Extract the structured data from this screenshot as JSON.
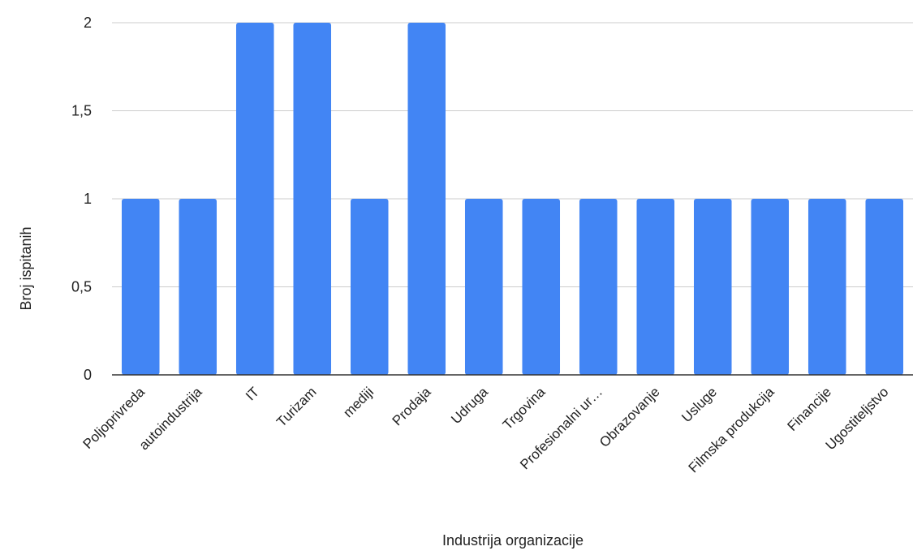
{
  "chart_data": {
    "type": "bar",
    "categories": [
      "Poljoprivreda",
      "autoindustrija",
      "IT",
      "Turizam",
      "mediji",
      "Prodaja",
      "Udruga",
      "Trgovina",
      "Profesionalni ur…",
      "Obrazovanje",
      "Usluge",
      "Filmska produkcija",
      "Financije",
      "Ugostiteljstvo"
    ],
    "values": [
      1,
      1,
      2,
      2,
      1,
      2,
      1,
      1,
      1,
      1,
      1,
      1,
      1,
      1
    ],
    "title": "",
    "xlabel": "Industrija organizacije",
    "ylabel": "Broj ispitanih",
    "ylim": [
      0,
      2
    ],
    "yticks": [
      0,
      0.5,
      1,
      1.5,
      2
    ],
    "ytick_labels": [
      "0",
      "0,5",
      "1",
      "1,5",
      "2"
    ],
    "grid": true,
    "legend": "none",
    "colors": {
      "bar": "#4285f4",
      "grid": "#cccccc",
      "axis": "#333333"
    }
  }
}
